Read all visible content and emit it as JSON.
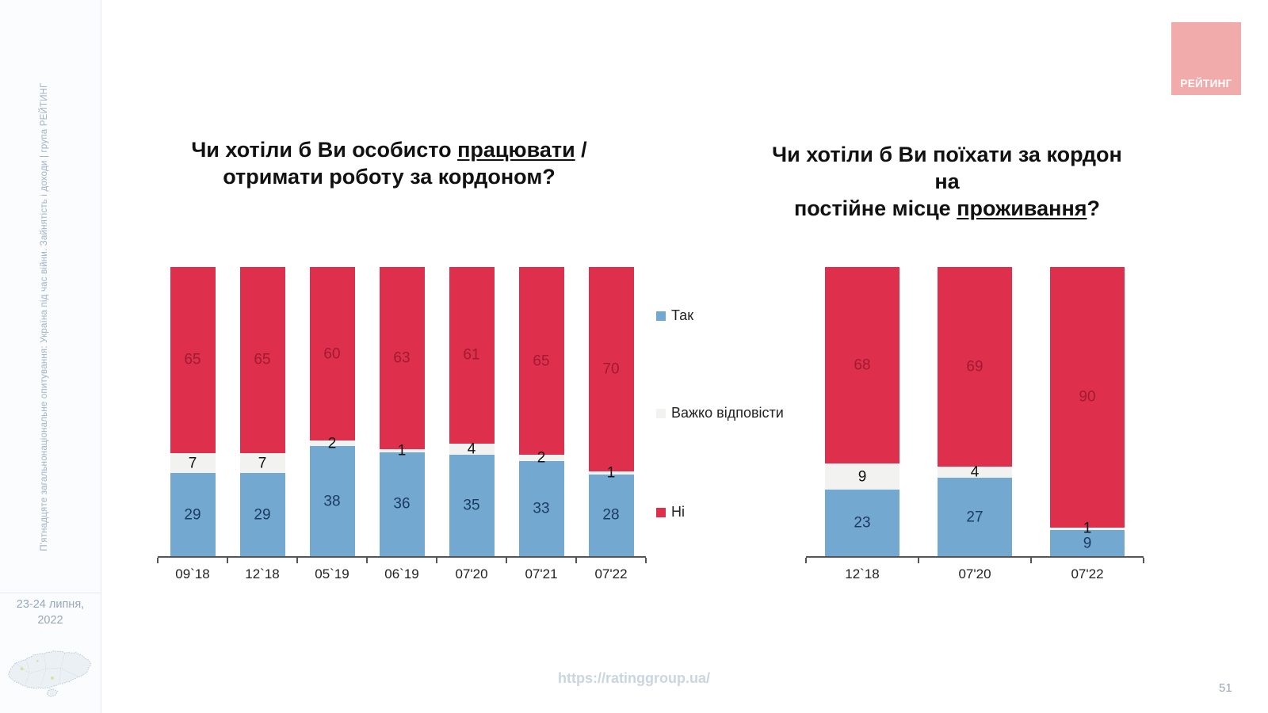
{
  "slide": {
    "page_number": "51"
  },
  "sidebar": {
    "vertical_text": "П'ятнадцяте загальнонаціональне опитування: Україна під час війни. Зайнятість і доходи | група РЕЙТИНГ",
    "date_line1": "23-24 липня,",
    "date_line2": "2022"
  },
  "logo": {
    "text": "РЕЙТИНГ",
    "background": "#F1ABAB",
    "text_color": "#FFFFFF"
  },
  "footer": {
    "url": "https://ratinggroup.ua/"
  },
  "colors": {
    "yes_blue": "#73A8D0",
    "neutral_gray": "#F2F2F0",
    "no_red": "#DE304C",
    "axis": "#555555"
  },
  "chart_data": [
    {
      "type": "bar",
      "stacked": true,
      "unit": "%",
      "ylim": [
        0,
        100
      ],
      "grid": false,
      "legend_position": "right",
      "title": "Чи хотіли б Ви особисто працювати / отримати роботу за кордоном?",
      "title_lines": [
        {
          "pre": "Чи хотіли б Ви особисто ",
          "u": "працювати",
          "post": " /"
        },
        {
          "pre": "отримати роботу за кордоном?",
          "u": "",
          "post": ""
        }
      ],
      "categories": [
        "09`18",
        "12`18",
        "05`19",
        "06`19",
        "07'20",
        "07'21",
        "07'22"
      ],
      "series": [
        {
          "name": "Так",
          "color": "#73A8D0",
          "label_color": "#1C3B61",
          "values": [
            29,
            29,
            38,
            36,
            35,
            33,
            28
          ]
        },
        {
          "name": "Важко відповісти",
          "color": "#F2F2F0",
          "label_color": "#111111",
          "values": [
            7,
            7,
            2,
            1,
            4,
            2,
            1
          ]
        },
        {
          "name": "Ні",
          "color": "#DE304C",
          "label_color": "#A11A32",
          "values": [
            65,
            65,
            60,
            63,
            61,
            65,
            70
          ]
        }
      ]
    },
    {
      "type": "bar",
      "stacked": true,
      "unit": "%",
      "ylim": [
        0,
        100
      ],
      "grid": false,
      "legend_position": "none",
      "title": "Чи хотіли б Ви поїхати за кордон на постійне місце проживання?",
      "title_lines": [
        {
          "pre": "Чи хотіли б Ви поїхати за кордон на",
          "u": "",
          "post": ""
        },
        {
          "pre": "постійне місце ",
          "u": "проживання",
          "post": "?"
        }
      ],
      "categories": [
        "12`18",
        "07'20",
        "07'22"
      ],
      "series": [
        {
          "name": "Так",
          "color": "#73A8D0",
          "label_color": "#1C3B61",
          "values": [
            23,
            27,
            9
          ]
        },
        {
          "name": "Важко відповісти",
          "color": "#F2F2F0",
          "label_color": "#111111",
          "values": [
            9,
            4,
            1
          ]
        },
        {
          "name": "Ні",
          "color": "#DE304C",
          "label_color": "#A11A32",
          "values": [
            68,
            69,
            90
          ]
        }
      ]
    }
  ]
}
